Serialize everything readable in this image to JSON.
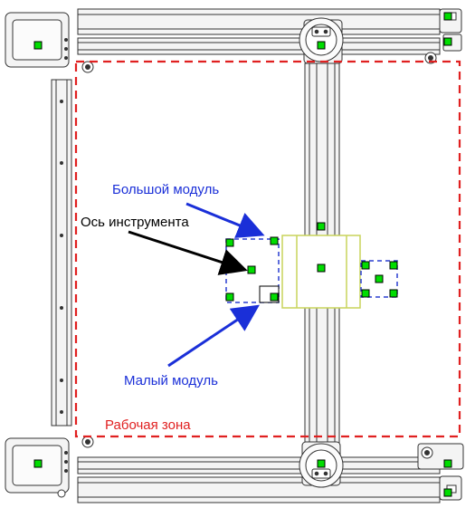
{
  "labels": {
    "big_module": "Большой модуль",
    "tool_axis": "Ось инструмента",
    "small_module": "Малый модуль",
    "work_zone": "Рабочая зона"
  },
  "colors": {
    "frame_line": "#333333",
    "frame_fill": "#f4f4f4",
    "work_zone": "#e02020",
    "module_outline": "#2a3fd0",
    "carriage_outline": "#c8d45a",
    "marker_fill": "#00dd00",
    "marker_border": "#000000",
    "annotation_blue": "#1a2fd8",
    "annotation_black": "#000000",
    "label_blue": "#1a2fd8",
    "label_red": "#e02020"
  },
  "icons": {
    "marker": "green-square-marker",
    "pulley": "pulley-icon",
    "arrow": "arrow-pointer"
  }
}
